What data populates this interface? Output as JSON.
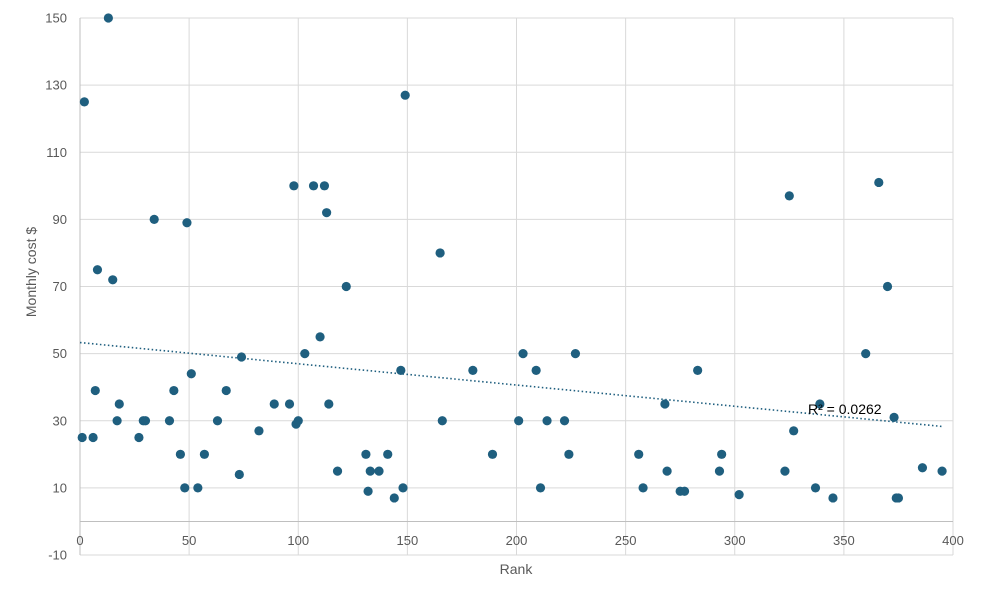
{
  "chart_data": {
    "type": "scatter",
    "title": "",
    "xlabel": "Rank",
    "ylabel": "Monthly cost $",
    "xlim": [
      0,
      400
    ],
    "ylim": [
      -10,
      150
    ],
    "xticks": [
      0,
      50,
      100,
      150,
      200,
      250,
      300,
      350,
      400
    ],
    "yticks": [
      -10,
      10,
      30,
      50,
      70,
      90,
      110,
      130,
      150
    ],
    "grid": true,
    "legend": "none",
    "colors": {
      "point": "#1f5f7f",
      "trendline": "#1f5f7f",
      "grid": "#d9d9d9",
      "axis": "#bfbfbf"
    },
    "trendline": {
      "type": "linear",
      "x": [
        0,
        395
      ],
      "y": [
        53.3,
        28.3
      ],
      "r2_label": "R² = 0.0262"
    },
    "points": [
      {
        "x": 1,
        "y": 25
      },
      {
        "x": 2,
        "y": 125
      },
      {
        "x": 6,
        "y": 25
      },
      {
        "x": 7,
        "y": 39
      },
      {
        "x": 8,
        "y": 75
      },
      {
        "x": 13,
        "y": 150
      },
      {
        "x": 15,
        "y": 72
      },
      {
        "x": 17,
        "y": 30
      },
      {
        "x": 18,
        "y": 35
      },
      {
        "x": 27,
        "y": 25
      },
      {
        "x": 29,
        "y": 30
      },
      {
        "x": 30,
        "y": 30
      },
      {
        "x": 34,
        "y": 90
      },
      {
        "x": 41,
        "y": 30
      },
      {
        "x": 43,
        "y": 39
      },
      {
        "x": 46,
        "y": 20
      },
      {
        "x": 48,
        "y": 10
      },
      {
        "x": 49,
        "y": 89
      },
      {
        "x": 51,
        "y": 44
      },
      {
        "x": 54,
        "y": 10
      },
      {
        "x": 57,
        "y": 20
      },
      {
        "x": 63,
        "y": 30
      },
      {
        "x": 67,
        "y": 39
      },
      {
        "x": 73,
        "y": 14
      },
      {
        "x": 74,
        "y": 49
      },
      {
        "x": 82,
        "y": 27
      },
      {
        "x": 89,
        "y": 35
      },
      {
        "x": 96,
        "y": 35
      },
      {
        "x": 98,
        "y": 100
      },
      {
        "x": 99,
        "y": 29
      },
      {
        "x": 100,
        "y": 30
      },
      {
        "x": 103,
        "y": 50
      },
      {
        "x": 107,
        "y": 100
      },
      {
        "x": 110,
        "y": 55
      },
      {
        "x": 112,
        "y": 100
      },
      {
        "x": 113,
        "y": 92
      },
      {
        "x": 114,
        "y": 35
      },
      {
        "x": 118,
        "y": 15
      },
      {
        "x": 122,
        "y": 70
      },
      {
        "x": 131,
        "y": 20
      },
      {
        "x": 132,
        "y": 9
      },
      {
        "x": 133,
        "y": 15
      },
      {
        "x": 137,
        "y": 15
      },
      {
        "x": 141,
        "y": 20
      },
      {
        "x": 144,
        "y": 7
      },
      {
        "x": 147,
        "y": 45
      },
      {
        "x": 148,
        "y": 10
      },
      {
        "x": 149,
        "y": 127
      },
      {
        "x": 165,
        "y": 80
      },
      {
        "x": 166,
        "y": 30
      },
      {
        "x": 180,
        "y": 45
      },
      {
        "x": 189,
        "y": 20
      },
      {
        "x": 201,
        "y": 30
      },
      {
        "x": 203,
        "y": 50
      },
      {
        "x": 209,
        "y": 45
      },
      {
        "x": 211,
        "y": 10
      },
      {
        "x": 214,
        "y": 30
      },
      {
        "x": 222,
        "y": 30
      },
      {
        "x": 224,
        "y": 20
      },
      {
        "x": 227,
        "y": 50
      },
      {
        "x": 256,
        "y": 20
      },
      {
        "x": 258,
        "y": 10
      },
      {
        "x": 268,
        "y": 35
      },
      {
        "x": 269,
        "y": 15
      },
      {
        "x": 275,
        "y": 9
      },
      {
        "x": 277,
        "y": 9
      },
      {
        "x": 283,
        "y": 45
      },
      {
        "x": 293,
        "y": 15
      },
      {
        "x": 294,
        "y": 20
      },
      {
        "x": 302,
        "y": 8
      },
      {
        "x": 323,
        "y": 15
      },
      {
        "x": 325,
        "y": 97
      },
      {
        "x": 327,
        "y": 27
      },
      {
        "x": 337,
        "y": 10
      },
      {
        "x": 339,
        "y": 35
      },
      {
        "x": 345,
        "y": 7
      },
      {
        "x": 360,
        "y": 50
      },
      {
        "x": 366,
        "y": 101
      },
      {
        "x": 370,
        "y": 70
      },
      {
        "x": 373,
        "y": 31
      },
      {
        "x": 374,
        "y": 7
      },
      {
        "x": 375,
        "y": 7
      },
      {
        "x": 386,
        "y": 16
      },
      {
        "x": 395,
        "y": 15
      }
    ]
  }
}
